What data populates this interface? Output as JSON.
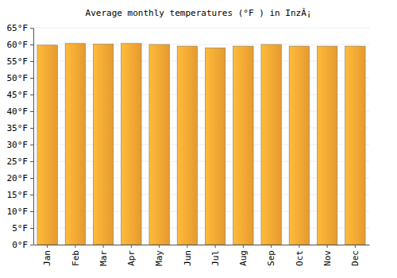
{
  "chart_data": {
    "type": "bar",
    "title": "Average monthly temperatures (°F ) in InzÃ¡",
    "categories": [
      "Jan",
      "Feb",
      "Mar",
      "Apr",
      "May",
      "Jun",
      "Jul",
      "Aug",
      "Sep",
      "Oct",
      "Nov",
      "Dec"
    ],
    "values": [
      59.8,
      60.3,
      60.1,
      60.3,
      60.0,
      59.5,
      59.0,
      59.5,
      60.0,
      59.5,
      59.5,
      59.5
    ],
    "color": "#fba834",
    "ylim": [
      0,
      65
    ],
    "yticks": [
      {
        "value": 0,
        "label": "0°F"
      },
      {
        "value": 5,
        "label": "5°F"
      },
      {
        "value": 10,
        "label": "10°F"
      },
      {
        "value": 15,
        "label": "15°F"
      },
      {
        "value": 20,
        "label": "20°F"
      },
      {
        "value": 25,
        "label": "25°F"
      },
      {
        "value": 30,
        "label": "30°F"
      },
      {
        "value": 35,
        "label": "35°F"
      },
      {
        "value": 40,
        "label": "40°F"
      },
      {
        "value": 45,
        "label": "45°F"
      },
      {
        "value": 50,
        "label": "50°F"
      },
      {
        "value": 55,
        "label": "55°F"
      },
      {
        "value": 60,
        "label": "60°F"
      },
      {
        "value": 65,
        "label": "65°F"
      }
    ],
    "grid": true
  }
}
